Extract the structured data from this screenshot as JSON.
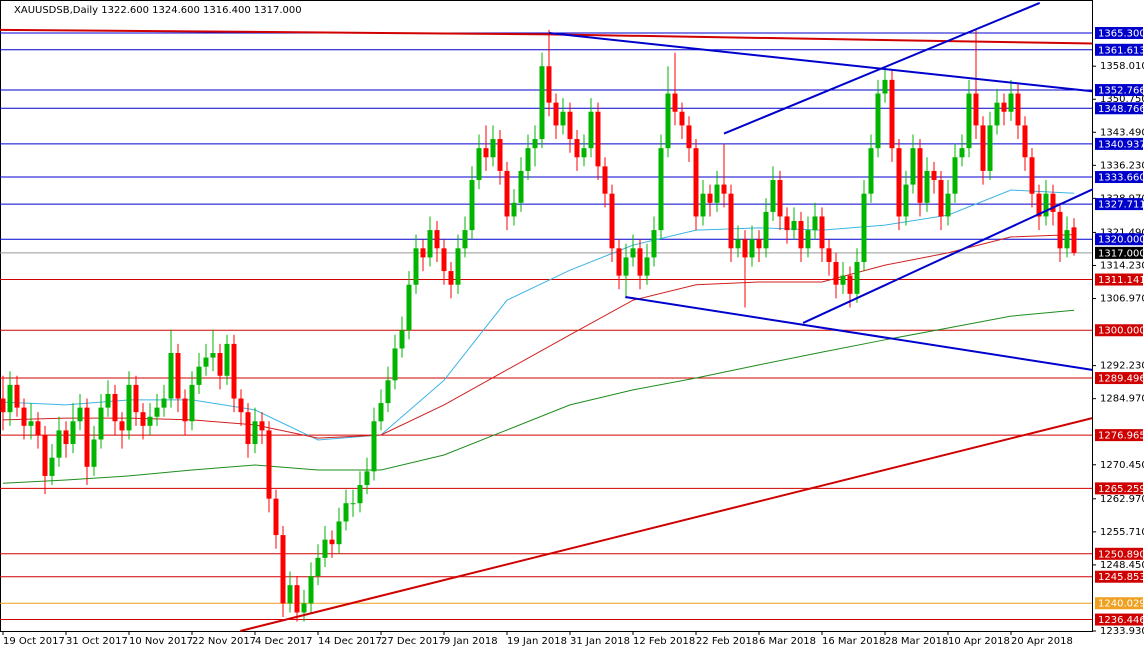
{
  "chart_data": {
    "type": "candlestick",
    "header": "XAUUSDSB,Daily  1322.600 1324.600 1316.400 1317.000",
    "up_color": "#00b400",
    "down_color": "#ff0000",
    "ylim": [
      1233.93,
      1365.3
    ],
    "yticks": [
      {
        "value": 1358.01,
        "label": "1358.010"
      },
      {
        "value": 1350.75,
        "label": "1350.750"
      },
      {
        "value": 1343.49,
        "label": "1343.490"
      },
      {
        "value": 1336.23,
        "label": "1336.230"
      },
      {
        "value": 1328.97,
        "label": "1328.970"
      },
      {
        "value": 1321.49,
        "label": "1321.490"
      },
      {
        "value": 1314.23,
        "label": "1314.230"
      },
      {
        "value": 1306.97,
        "label": "1306.970"
      },
      {
        "value": 1292.23,
        "label": "1292.230"
      },
      {
        "value": 1284.97,
        "label": "1284.970"
      },
      {
        "value": 1270.45,
        "label": "1270.450"
      },
      {
        "value": 1262.97,
        "label": "1262.970"
      },
      {
        "value": 1255.71,
        "label": "1255.710"
      },
      {
        "value": 1248.45,
        "label": "1248.450"
      },
      {
        "value": 1233.93,
        "label": "1233.930"
      }
    ],
    "levels": [
      {
        "value": 1365.3,
        "label": "1365.300",
        "color": "#0000cd"
      },
      {
        "value": 1361.613,
        "label": "1361.613",
        "color": "#0000cd"
      },
      {
        "value": 1352.766,
        "label": "1352.766",
        "color": "#0000cd"
      },
      {
        "value": 1348.766,
        "label": "1348.766",
        "color": "#0000cd"
      },
      {
        "value": 1340.937,
        "label": "1340.937",
        "color": "#0000cd"
      },
      {
        "value": 1333.66,
        "label": "1333.660",
        "color": "#0000cd"
      },
      {
        "value": 1327.711,
        "label": "1327.711",
        "color": "#0000cd"
      },
      {
        "value": 1320,
        "label": "1320.000",
        "color": "#0000cd"
      },
      {
        "value": 1317,
        "label": "1317.000",
        "color": "#000000"
      },
      {
        "value": 1311.141,
        "label": "1311.141",
        "color": "#d00000"
      },
      {
        "value": 1300,
        "label": "1300.000",
        "color": "#d00000"
      },
      {
        "value": 1289.496,
        "label": "1289.496",
        "color": "#d00000"
      },
      {
        "value": 1276.965,
        "label": "1276.965",
        "color": "#d00000"
      },
      {
        "value": 1265.259,
        "label": "1265.259",
        "color": "#d00000"
      },
      {
        "value": 1250.89,
        "label": "1250.890",
        "color": "#d00000"
      },
      {
        "value": 1245.853,
        "label": "1245.853",
        "color": "#d00000"
      },
      {
        "value": 1240.029,
        "label": "1240.029",
        "color": "#f0a020"
      },
      {
        "value": 1236.446,
        "label": "1236.446",
        "color": "#d00000"
      }
    ],
    "x_labels": [
      {
        "bar": 0,
        "label": "19 Oct 2017"
      },
      {
        "bar": 9,
        "label": "31 Oct 2017"
      },
      {
        "bar": 18,
        "label": "10 Nov 2017"
      },
      {
        "bar": 27,
        "label": "22 Nov 2017"
      },
      {
        "bar": 36,
        "label": "4 Dec 2017"
      },
      {
        "bar": 45,
        "label": "14 Dec 2017"
      },
      {
        "bar": 54,
        "label": "27 Dec 2017"
      },
      {
        "bar": 63,
        "label": "9 Jan 2018"
      },
      {
        "bar": 72,
        "label": "19 Jan 2018"
      },
      {
        "bar": 81,
        "label": "31 Jan 2018"
      },
      {
        "bar": 90,
        "label": "12 Feb 2018"
      },
      {
        "bar": 99,
        "label": "22 Feb 2018"
      },
      {
        "bar": 108,
        "label": "6 Mar 2018"
      },
      {
        "bar": 117,
        "label": "16 Mar 2018"
      },
      {
        "bar": 126,
        "label": "28 Mar 2018"
      },
      {
        "bar": 135,
        "label": "10 Apr 2018"
      },
      {
        "bar": 144,
        "label": "20 Apr 2018"
      }
    ],
    "ohlc": [
      [
        1285,
        1290,
        1278,
        1282
      ],
      [
        1282,
        1291,
        1279,
        1288
      ],
      [
        1288,
        1290,
        1281,
        1283
      ],
      [
        1283,
        1285,
        1276,
        1279
      ],
      [
        1279,
        1284,
        1276,
        1280
      ],
      [
        1280,
        1282,
        1274,
        1277
      ],
      [
        1277,
        1279,
        1264,
        1268
      ],
      [
        1268,
        1275,
        1266,
        1272
      ],
      [
        1272,
        1281,
        1270,
        1278
      ],
      [
        1278,
        1280,
        1272,
        1275
      ],
      [
        1275,
        1284,
        1273,
        1280
      ],
      [
        1280,
        1286,
        1278,
        1283
      ],
      [
        1283,
        1285,
        1266,
        1270
      ],
      [
        1270,
        1279,
        1268,
        1276
      ],
      [
        1276,
        1286,
        1274,
        1283
      ],
      [
        1283,
        1289,
        1281,
        1286
      ],
      [
        1286,
        1288,
        1277,
        1280
      ],
      [
        1280,
        1282,
        1274,
        1278
      ],
      [
        1278,
        1291,
        1276,
        1288
      ],
      [
        1288,
        1290,
        1279,
        1282
      ],
      [
        1282,
        1284,
        1276,
        1279
      ],
      [
        1279,
        1284,
        1277,
        1281
      ],
      [
        1281,
        1286,
        1279,
        1283
      ],
      [
        1283,
        1288,
        1281,
        1285
      ],
      [
        1285,
        1300,
        1283,
        1295
      ],
      [
        1295,
        1297,
        1282,
        1285
      ],
      [
        1285,
        1287,
        1277,
        1280
      ],
      [
        1280,
        1291,
        1278,
        1288
      ],
      [
        1288,
        1295,
        1286,
        1292
      ],
      [
        1292,
        1297,
        1290,
        1294
      ],
      [
        1294,
        1300,
        1291,
        1295
      ],
      [
        1295,
        1297,
        1287,
        1290
      ],
      [
        1290,
        1299,
        1288,
        1297
      ],
      [
        1297,
        1299,
        1282,
        1285
      ],
      [
        1285,
        1287,
        1279,
        1282
      ],
      [
        1282,
        1284,
        1272,
        1275
      ],
      [
        1275,
        1283,
        1273,
        1280
      ],
      [
        1280,
        1282,
        1275,
        1278
      ],
      [
        1278,
        1280,
        1260,
        1263
      ],
      [
        1263,
        1265,
        1252,
        1255
      ],
      [
        1255,
        1257,
        1237,
        1240
      ],
      [
        1240,
        1247,
        1238,
        1244
      ],
      [
        1244,
        1246,
        1236,
        1238
      ],
      [
        1238,
        1243,
        1236,
        1240
      ],
      [
        1240,
        1249,
        1238,
        1246
      ],
      [
        1246,
        1253,
        1244,
        1250
      ],
      [
        1250,
        1257,
        1248,
        1254
      ],
      [
        1254,
        1256,
        1250,
        1253
      ],
      [
        1253,
        1261,
        1251,
        1258
      ],
      [
        1258,
        1265,
        1256,
        1262
      ],
      [
        1262,
        1265,
        1259,
        1262
      ],
      [
        1262,
        1269,
        1260,
        1266
      ],
      [
        1266,
        1272,
        1264,
        1269
      ],
      [
        1269,
        1283,
        1267,
        1280
      ],
      [
        1280,
        1287,
        1278,
        1284
      ],
      [
        1284,
        1292,
        1282,
        1289
      ],
      [
        1289,
        1299,
        1287,
        1296
      ],
      [
        1296,
        1303,
        1294,
        1300
      ],
      [
        1300,
        1313,
        1298,
        1310
      ],
      [
        1310,
        1321,
        1308,
        1318
      ],
      [
        1318,
        1320,
        1313,
        1316
      ],
      [
        1316,
        1325,
        1314,
        1322
      ],
      [
        1322,
        1324,
        1315,
        1318
      ],
      [
        1318,
        1320,
        1310,
        1313
      ],
      [
        1313,
        1315,
        1307,
        1310
      ],
      [
        1310,
        1321,
        1308,
        1318
      ],
      [
        1318,
        1325,
        1316,
        1322
      ],
      [
        1322,
        1336,
        1320,
        1333
      ],
      [
        1333,
        1343,
        1331,
        1340
      ],
      [
        1340,
        1345,
        1335,
        1338
      ],
      [
        1338,
        1345,
        1336,
        1342
      ],
      [
        1342,
        1344,
        1332,
        1335
      ],
      [
        1335,
        1337,
        1322,
        1325
      ],
      [
        1325,
        1331,
        1323,
        1328
      ],
      [
        1328,
        1338,
        1326,
        1335
      ],
      [
        1335,
        1343,
        1333,
        1340
      ],
      [
        1340,
        1345,
        1336,
        1342
      ],
      [
        1342,
        1361,
        1340,
        1358
      ],
      [
        1358,
        1366,
        1347,
        1350
      ],
      [
        1350,
        1352,
        1342,
        1345
      ],
      [
        1345,
        1351,
        1343,
        1348
      ],
      [
        1348,
        1350,
        1339,
        1342
      ],
      [
        1342,
        1344,
        1335,
        1338
      ],
      [
        1338,
        1343,
        1336,
        1340
      ],
      [
        1340,
        1351,
        1338,
        1348
      ],
      [
        1348,
        1350,
        1333,
        1336
      ],
      [
        1336,
        1338,
        1327,
        1330
      ],
      [
        1330,
        1332,
        1315,
        1318
      ],
      [
        1318,
        1320,
        1309,
        1312
      ],
      [
        1312,
        1319,
        1307,
        1316
      ],
      [
        1316,
        1321,
        1314,
        1318
      ],
      [
        1318,
        1320,
        1309,
        1312
      ],
      [
        1312,
        1319,
        1310,
        1316
      ],
      [
        1316,
        1325,
        1314,
        1322
      ],
      [
        1322,
        1343,
        1320,
        1340
      ],
      [
        1340,
        1358,
        1338,
        1352
      ],
      [
        1352,
        1361,
        1345,
        1348
      ],
      [
        1348,
        1350,
        1342,
        1345
      ],
      [
        1345,
        1347,
        1337,
        1340
      ],
      [
        1340,
        1342,
        1322,
        1325
      ],
      [
        1325,
        1333,
        1323,
        1330
      ],
      [
        1330,
        1332,
        1325,
        1328
      ],
      [
        1328,
        1335,
        1326,
        1332
      ],
      [
        1332,
        1341,
        1327,
        1330
      ],
      [
        1330,
        1332,
        1315,
        1318
      ],
      [
        1318,
        1323,
        1316,
        1320
      ],
      [
        1320,
        1322,
        1305,
        1316
      ],
      [
        1316,
        1323,
        1314,
        1320
      ],
      [
        1320,
        1322,
        1315,
        1318
      ],
      [
        1318,
        1329,
        1316,
        1326
      ],
      [
        1326,
        1336,
        1324,
        1333
      ],
      [
        1333,
        1335,
        1322,
        1325
      ],
      [
        1325,
        1327,
        1319,
        1322
      ],
      [
        1322,
        1327,
        1320,
        1324
      ],
      [
        1324,
        1326,
        1315,
        1318
      ],
      [
        1318,
        1325,
        1316,
        1322
      ],
      [
        1322,
        1328,
        1320,
        1325
      ],
      [
        1325,
        1327,
        1315,
        1318
      ],
      [
        1318,
        1320,
        1312,
        1315
      ],
      [
        1315,
        1317,
        1307,
        1310
      ],
      [
        1310,
        1315,
        1308,
        1312
      ],
      [
        1312,
        1314,
        1305,
        1308
      ],
      [
        1308,
        1318,
        1306,
        1315
      ],
      [
        1315,
        1333,
        1313,
        1330
      ],
      [
        1330,
        1343,
        1328,
        1340
      ],
      [
        1340,
        1355,
        1338,
        1352
      ],
      [
        1352,
        1358,
        1350,
        1355
      ],
      [
        1355,
        1357,
        1337,
        1340
      ],
      [
        1340,
        1342,
        1322,
        1325
      ],
      [
        1325,
        1335,
        1323,
        1332
      ],
      [
        1332,
        1343,
        1330,
        1340
      ],
      [
        1340,
        1342,
        1325,
        1328
      ],
      [
        1328,
        1338,
        1326,
        1335
      ],
      [
        1335,
        1337,
        1330,
        1333
      ],
      [
        1333,
        1335,
        1322,
        1325
      ],
      [
        1325,
        1333,
        1323,
        1330
      ],
      [
        1330,
        1341,
        1328,
        1338
      ],
      [
        1338,
        1343,
        1336,
        1340
      ],
      [
        1340,
        1355,
        1338,
        1352
      ],
      [
        1352,
        1366,
        1342,
        1345
      ],
      [
        1345,
        1347,
        1332,
        1335
      ],
      [
        1335,
        1348,
        1333,
        1345
      ],
      [
        1345,
        1353,
        1343,
        1350
      ],
      [
        1350,
        1352,
        1345,
        1348
      ],
      [
        1348,
        1355,
        1346,
        1352
      ],
      [
        1352,
        1354,
        1342,
        1345
      ],
      [
        1345,
        1347,
        1335,
        1338
      ],
      [
        1338,
        1340,
        1327,
        1330
      ],
      [
        1330,
        1332,
        1322,
        1325
      ],
      [
        1325,
        1333,
        1323,
        1330
      ],
      [
        1330,
        1332,
        1323,
        1326
      ],
      [
        1326,
        1328,
        1315,
        1318
      ],
      [
        1318,
        1325,
        1316,
        1322
      ],
      [
        1322.6,
        1324.6,
        1316.4,
        1317
      ]
    ],
    "ma_bars": [
      0,
      9,
      18,
      27,
      36,
      45,
      54,
      63,
      72,
      81,
      90,
      99,
      108,
      117,
      126,
      135,
      144,
      153
    ],
    "ma": [
      {
        "color": "#3cb4e6",
        "values": [
          1284.2,
          1283.6,
          1284.7,
          1284.7,
          1282.5,
          1275.9,
          1277,
          1289,
          1306.6,
          1313.2,
          1318.7,
          1322,
          1322.5,
          1322,
          1323.1,
          1325.3,
          1330.8,
          1330.1
        ]
      },
      {
        "color": "#d02020",
        "values": [
          1280.3,
          1280.7,
          1280.7,
          1280.3,
          1279.2,
          1276.3,
          1277,
          1283.6,
          1291.3,
          1299,
          1306.6,
          1310,
          1310.6,
          1310.6,
          1314.3,
          1317,
          1320.5,
          1321
        ]
      },
      {
        "color": "#1e8c1e",
        "values": [
          1266.4,
          1267.1,
          1268,
          1269.3,
          1270.4,
          1269.3,
          1269.3,
          1272.6,
          1278.1,
          1283.6,
          1286.9,
          1289.5,
          1292.4,
          1295.2,
          1297.9,
          1300.5,
          1303.1,
          1304.4
        ]
      }
    ],
    "trendlines": [
      {
        "color": "#d00000",
        "points": [
          [
            -0.4,
            1366
          ],
          [
            78,
            1365
          ],
          [
            155.6,
            1363
          ]
        ]
      },
      {
        "color": "#0000cd",
        "points": [
          [
            78,
            1365.3
          ],
          [
            155.6,
            1352.5
          ]
        ]
      },
      {
        "color": "#0000cd",
        "points": [
          [
            103,
            1343.2
          ],
          [
            148.1,
            1371.9
          ]
        ]
      },
      {
        "color": "#0000cd",
        "points": [
          [
            114.3,
            1301.6
          ],
          [
            156,
            1331.2
          ]
        ]
      },
      {
        "color": "#0000cd",
        "points": [
          [
            88.9,
            1307.3
          ],
          [
            155.6,
            1291.3
          ]
        ]
      },
      {
        "color": "#d00000",
        "points": [
          [
            33.9,
            1233.93
          ],
          [
            155.6,
            1280.7
          ]
        ]
      }
    ]
  }
}
